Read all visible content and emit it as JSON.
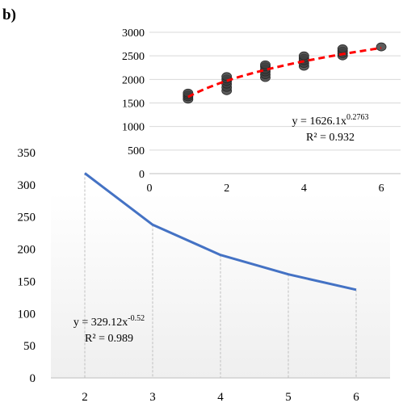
{
  "panel_label": "b)",
  "colors": {
    "line": "#4472c4",
    "points": "#404040",
    "fit": "#ff0000",
    "grid": "#d9d9d9",
    "drop": "#bfbfbf",
    "axis": "#bfbfbf",
    "text": "#000000"
  },
  "chart_data": [
    {
      "id": "top",
      "type": "scatter",
      "title": "",
      "xlabel": "",
      "ylabel": "",
      "xlim": [
        0,
        6.5
      ],
      "ylim": [
        0,
        3000
      ],
      "x_ticks": [
        0,
        2,
        4,
        6
      ],
      "y_ticks": [
        0,
        500,
        1000,
        1500,
        2000,
        2500,
        3000
      ],
      "grid": "horizontal",
      "points": [
        [
          1,
          1580
        ],
        [
          1,
          1630
        ],
        [
          1,
          1670
        ],
        [
          1,
          1710
        ],
        [
          2,
          1760
        ],
        [
          2,
          1830
        ],
        [
          2,
          1900
        ],
        [
          2,
          1960
        ],
        [
          2,
          2010
        ],
        [
          2,
          2060
        ],
        [
          3,
          2040
        ],
        [
          3,
          2100
        ],
        [
          3,
          2160
        ],
        [
          3,
          2210
        ],
        [
          3,
          2270
        ],
        [
          3,
          2310
        ],
        [
          4,
          2280
        ],
        [
          4,
          2340
        ],
        [
          4,
          2400
        ],
        [
          4,
          2450
        ],
        [
          4,
          2500
        ],
        [
          5,
          2500
        ],
        [
          5,
          2550
        ],
        [
          5,
          2600
        ],
        [
          5,
          2650
        ],
        [
          6,
          2690
        ]
      ],
      "trendline": {
        "type": "power",
        "a": 1626.1,
        "b": 0.2763,
        "x_range": [
          1,
          6
        ],
        "style": "dashed"
      },
      "equation": {
        "prefix": "y = 1626.1x",
        "exponent": "0.2763",
        "r2": "R² = 0.932"
      }
    },
    {
      "id": "bottom",
      "type": "line",
      "title": "",
      "xlabel": "",
      "ylabel": "",
      "categories": [
        "2",
        "3",
        "4",
        "5",
        "6"
      ],
      "values": [
        318,
        238,
        191,
        161,
        137
      ],
      "ylim": [
        0,
        350
      ],
      "y_ticks": [
        0,
        50,
        100,
        150,
        200,
        250,
        300,
        350
      ],
      "drop_lines": true,
      "equation": {
        "prefix": "y = 329.12x",
        "exponent": "-0.52",
        "r2": "R² = 0.989"
      }
    }
  ]
}
